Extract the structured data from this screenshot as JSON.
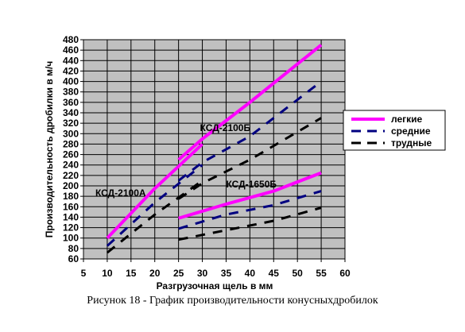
{
  "chart_data": {
    "type": "line",
    "xlabel": "Разгрузочная щель в мм",
    "ylabel": "Производительность дробилки в м/ч",
    "xlim": [
      5,
      60
    ],
    "ylim": [
      60,
      480
    ],
    "x_ticks": [
      5,
      10,
      15,
      20,
      25,
      30,
      35,
      40,
      45,
      50,
      55,
      60
    ],
    "y_ticks": [
      60,
      80,
      100,
      120,
      140,
      160,
      180,
      200,
      220,
      240,
      260,
      280,
      300,
      320,
      340,
      360,
      380,
      400,
      420,
      440,
      460,
      480
    ],
    "grid": true,
    "background_color": "#c0c0c0",
    "legend": {
      "placement": "right",
      "entries": [
        {
          "label": "легкие",
          "color": "#ff00ff",
          "style": "solid"
        },
        {
          "label": "средние",
          "color": "#000080",
          "style": "dashed"
        },
        {
          "label": "трудные",
          "color": "#000000",
          "style": "dashed"
        }
      ]
    },
    "series": [
      {
        "name": "легкие",
        "group": "КСД-2100А",
        "color": "#ff00ff",
        "style": "solid",
        "x": [
          10,
          20,
          30
        ],
        "y": [
          100,
          195,
          280
        ]
      },
      {
        "name": "средние",
        "group": "КСД-2100А",
        "color": "#000080",
        "style": "dashed",
        "x": [
          10,
          20,
          30
        ],
        "y": [
          85,
          168,
          240
        ]
      },
      {
        "name": "трудные",
        "group": "КСД-2100А",
        "color": "#000000",
        "style": "dashed",
        "x": [
          10,
          20,
          30
        ],
        "y": [
          72,
          145,
          210
        ]
      },
      {
        "name": "легкие",
        "group": "КСД-2100Б",
        "color": "#ff00ff",
        "style": "solid",
        "x": [
          25,
          30,
          40,
          55
        ],
        "y": [
          250,
          290,
          360,
          470
        ]
      },
      {
        "name": "средние",
        "group": "КСД-2100Б",
        "color": "#000080",
        "style": "dashed",
        "x": [
          25,
          30,
          40,
          55
        ],
        "y": [
          210,
          245,
          295,
          400
        ]
      },
      {
        "name": "трудные",
        "group": "КСД-2100Б",
        "color": "#000000",
        "style": "dashed",
        "x": [
          25,
          30,
          40,
          55
        ],
        "y": [
          175,
          205,
          250,
          330
        ]
      },
      {
        "name": "легкие",
        "group": "КСД-1650Б",
        "color": "#ff00ff",
        "style": "solid",
        "x": [
          25,
          35,
          45,
          55
        ],
        "y": [
          138,
          165,
          190,
          225
        ]
      },
      {
        "name": "средние",
        "group": "КСД-1650Б",
        "color": "#000080",
        "style": "dashed",
        "x": [
          25,
          35,
          45,
          55
        ],
        "y": [
          118,
          145,
          163,
          190
        ]
      },
      {
        "name": "трудные",
        "group": "КСД-1650Б",
        "color": "#000000",
        "style": "dashed",
        "x": [
          25,
          35,
          45,
          55
        ],
        "y": [
          97,
          115,
          133,
          158
        ]
      }
    ],
    "annotations": [
      {
        "text": "КСД-2100А",
        "x": 7.5,
        "y": 180
      },
      {
        "text": "КСД-2100Б",
        "x": 29.5,
        "y": 305
      },
      {
        "text": "КСД-1650Б",
        "x": 35,
        "y": 197
      }
    ]
  },
  "caption": "Рисунок 18 - График производительности конусныхдробилок"
}
